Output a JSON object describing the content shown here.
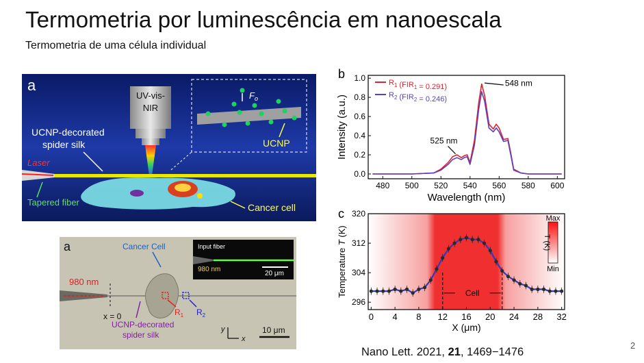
{
  "slide": {
    "title": "Termometria por luminescência em nanoescala",
    "subtitle": "Termometria de uma célula individual",
    "page_number": "2",
    "citation": {
      "journal": "Nano Lett. 2021, ",
      "volume": "21",
      "pages": ", 1469−1476"
    }
  },
  "panel_a_top": {
    "letter": "a",
    "objective_label": [
      "UV-vis-",
      "NIR"
    ],
    "silk_label": [
      "UCNP-decorated",
      "spider silk"
    ],
    "laser_label": "Laser",
    "fiber_label": "Tapered fiber",
    "cell_label": "Cancer cell",
    "inset_force_label": "F",
    "inset_force_sub": "o",
    "inset_ucnp_label": "UCNP",
    "colors": {
      "background": "#0d1f6e",
      "silk": "#e8e800",
      "cell": "#7fe3e8"
    }
  },
  "panel_a_bottom": {
    "letter": "a",
    "cell_label": "Cancer Cell",
    "laser_label": "980 nm",
    "x0_label": "x = 0",
    "r1_label": "R",
    "r1_sub": "1",
    "r2_label": "R",
    "r2_sub": "2",
    "silk_label": [
      "UCNP-decorated",
      "spider silk"
    ],
    "inset_title": "Input fiber",
    "inset_laser": "980 nm",
    "inset_scale": "20 μm",
    "scale_label": "10 μm",
    "axis_y": "y",
    "axis_x": "x"
  },
  "chart_b": {
    "type": "line",
    "letter": "b",
    "xlabel": "Wavelength (nm)",
    "ylabel": "Intensity (a.u.)",
    "xlim": [
      470,
      605
    ],
    "ylim": [
      -0.05,
      1.03
    ],
    "xticks": [
      480,
      500,
      520,
      540,
      560,
      580,
      600
    ],
    "yticks": [
      0.0,
      0.2,
      0.4,
      0.6,
      0.8,
      1.0
    ],
    "annotations": [
      {
        "text": "525 nm"
      },
      {
        "text": "548 nm"
      }
    ],
    "series": [
      {
        "name": "R",
        "sub": "1",
        "fir": " (FIR",
        "fir_sub": "1",
        "fir_val": " = 0.291)",
        "color": "#e0202c",
        "x": [
          473,
          500,
          515,
          520,
          525,
          528,
          531,
          534,
          536,
          538,
          540,
          543,
          546,
          548,
          550,
          553,
          556,
          558,
          560,
          563,
          566,
          568,
          570,
          575,
          580,
          590,
          600,
          603
        ],
        "y": [
          0.0,
          0.0,
          0.01,
          0.05,
          0.12,
          0.18,
          0.2,
          0.17,
          0.19,
          0.2,
          0.12,
          0.35,
          0.75,
          0.94,
          0.82,
          0.52,
          0.47,
          0.52,
          0.48,
          0.36,
          0.37,
          0.22,
          0.05,
          0.01,
          0.0,
          0.0,
          0.0,
          0.0
        ]
      },
      {
        "name": "R",
        "sub": "2",
        "fir": " (FIR",
        "fir_sub": "2",
        "fir_val": " = 0.246)",
        "color": "#5a3fc0",
        "x": [
          473,
          500,
          515,
          520,
          525,
          528,
          531,
          534,
          536,
          538,
          540,
          543,
          546,
          548,
          550,
          553,
          556,
          558,
          560,
          563,
          566,
          568,
          570,
          575,
          580,
          590,
          600,
          603
        ],
        "y": [
          0.0,
          0.0,
          0.01,
          0.04,
          0.1,
          0.15,
          0.17,
          0.15,
          0.17,
          0.18,
          0.1,
          0.3,
          0.68,
          0.86,
          0.76,
          0.48,
          0.44,
          0.48,
          0.44,
          0.34,
          0.35,
          0.2,
          0.04,
          0.01,
          0.0,
          0.0,
          0.0,
          0.0
        ]
      }
    ]
  },
  "chart_c": {
    "type": "line",
    "letter": "c",
    "xlabel": "X (μm)",
    "ylabel_main": "Temperature ",
    "ylabel_var": "T",
    "ylabel_unit": " (K)",
    "xlim": [
      -0.5,
      32.5
    ],
    "ylim": [
      294,
      320
    ],
    "xticks": [
      0,
      4,
      8,
      12,
      16,
      20,
      24,
      28,
      32
    ],
    "yticks": [
      296,
      304,
      312,
      320
    ],
    "cell_label": "Cell",
    "cell_range": [
      12,
      22
    ],
    "colorbar": {
      "max": "Max",
      "min": "Min",
      "label": "T (K)"
    },
    "line_color": "#2c3dbd",
    "points": {
      "x": [
        0,
        1,
        2,
        3,
        4,
        5,
        6,
        7,
        8,
        9,
        10,
        11,
        12,
        13,
        14,
        15,
        16,
        17,
        18,
        19,
        20,
        21,
        22,
        23,
        24,
        25,
        26,
        27,
        28,
        29,
        30,
        31,
        32
      ],
      "y": [
        299,
        299,
        299,
        299,
        299.5,
        299,
        299.5,
        298.5,
        299.5,
        300,
        302,
        305,
        308,
        310.5,
        312,
        313,
        313.5,
        313,
        313,
        312,
        310,
        307,
        304.5,
        303,
        302,
        301,
        300.5,
        299.5,
        299.5,
        299.5,
        299,
        299,
        299
      ]
    }
  }
}
